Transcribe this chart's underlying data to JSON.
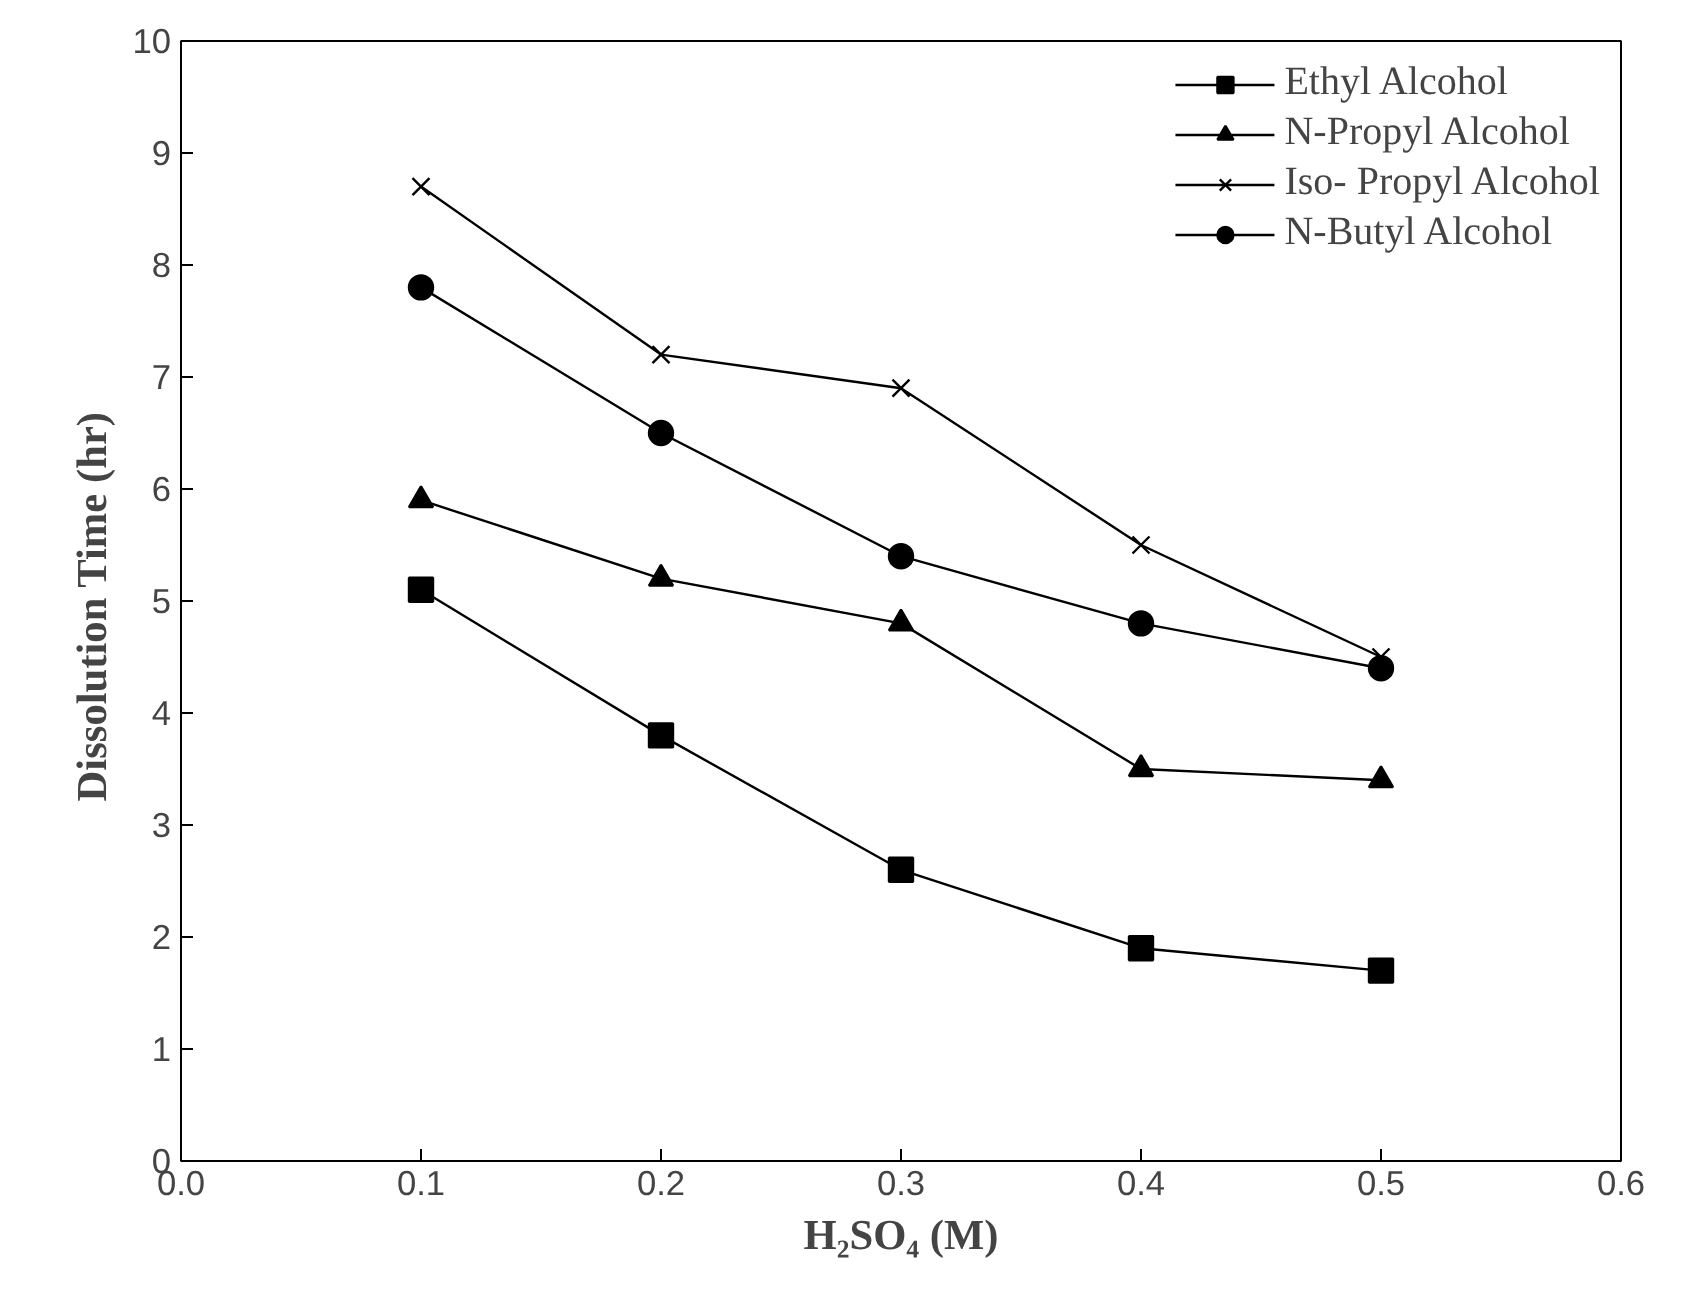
{
  "chart_data": {
    "type": "line",
    "xlabel": "H₂SO₄ (M)",
    "ylabel": "Dissolution Time  (hr)",
    "x": [
      0.1,
      0.2,
      0.3,
      0.4,
      0.5
    ],
    "series": [
      {
        "name": "Ethyl Alcohol",
        "color": "#000000",
        "marker": "square",
        "values": [
          5.1,
          3.8,
          2.6,
          1.9,
          1.7
        ]
      },
      {
        "name": "N-Propyl Alcohol",
        "color": "#000000",
        "marker": "triangle",
        "values": [
          5.9,
          5.2,
          4.8,
          3.5,
          3.4
        ]
      },
      {
        "name": "Iso- Propyl Alcohol",
        "color": "#000000",
        "marker": "cross",
        "values": [
          8.7,
          7.2,
          6.9,
          5.5,
          4.5
        ]
      },
      {
        "name": "N-Butyl Alcohol",
        "color": "#000000",
        "marker": "circle",
        "values": [
          7.8,
          6.5,
          5.4,
          4.8,
          4.4
        ]
      }
    ],
    "xlim": [
      0,
      0.6
    ],
    "ylim": [
      0,
      10
    ],
    "xticks": [
      {
        "value": 0,
        "label": "0.0"
      },
      {
        "value": 0.1,
        "label": "0.1"
      },
      {
        "value": 0.2,
        "label": "0.2"
      },
      {
        "value": 0.3,
        "label": "0.3"
      },
      {
        "value": 0.4,
        "label": "0.4"
      },
      {
        "value": 0.5,
        "label": "0.5"
      },
      {
        "value": 0.6,
        "label": "0.6"
      }
    ],
    "yticks": [
      0,
      1,
      2,
      3,
      4,
      5,
      6,
      7,
      8,
      9,
      10
    ],
    "grid": false,
    "legend": "top right",
    "line_style": "solid"
  }
}
